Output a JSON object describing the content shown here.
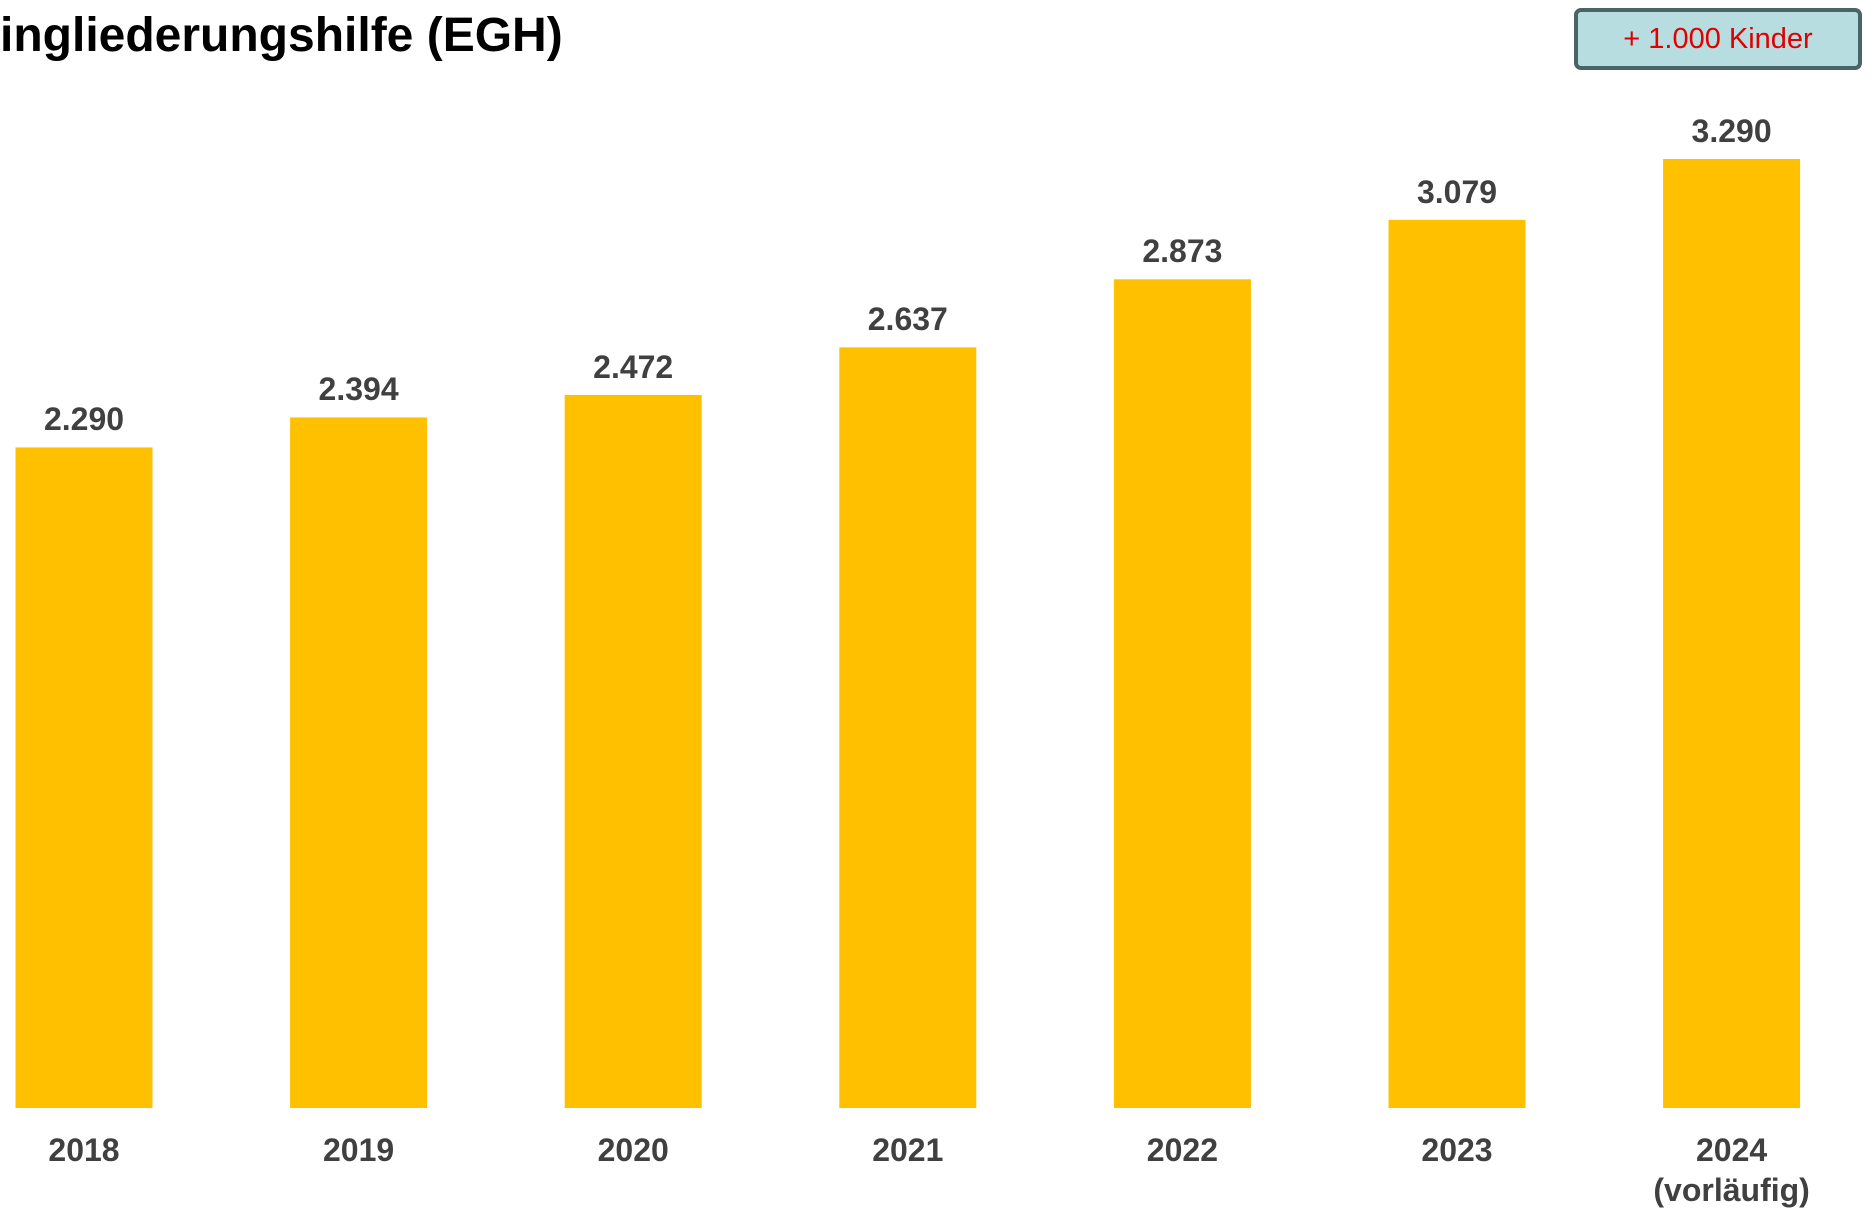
{
  "title": "ingliederungshilfe (EGH)",
  "annotation": "+ 1.000 Kinder",
  "chart_data": {
    "type": "bar",
    "categories": [
      "2018",
      "2019",
      "2020",
      "2021",
      "2022",
      "2023",
      "2024\n(vorläufig)"
    ],
    "values": [
      2290,
      2394,
      2472,
      2637,
      2873,
      3079,
      3290
    ],
    "value_labels": [
      "2.290",
      "2.394",
      "2.472",
      "2.637",
      "2.873",
      "3.079",
      "3.290"
    ],
    "color": "#ffc000"
  }
}
